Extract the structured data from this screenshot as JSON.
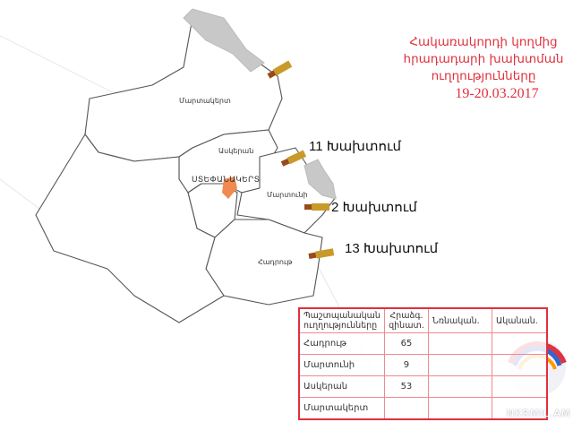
{
  "title": {
    "line1": "Հակառակորդի կողմից",
    "line2": "հրադադարի խախտման",
    "line3": "ուղղությունները",
    "date": "19-20.03.2017"
  },
  "regions": {
    "martakert": "Մարտակերտ",
    "askeran": "Ասկերան",
    "stepanakert": "ՍՏԵՓԱՆԱԿԵՐՏ",
    "martuni": "Մարտունի",
    "hadrut": "Հադրութ"
  },
  "violations": [
    {
      "label": "11 Խախտում"
    },
    {
      "label": "2 Խախտում"
    },
    {
      "label": "13 Խախտում"
    }
  ],
  "table": {
    "headers": [
      "Պաշտպանական ուղղությունները",
      "Հրաձգ. զինատ.",
      "Նռնական.",
      "Ականան."
    ],
    "rows": [
      [
        "Հադրութ",
        "65",
        "",
        ""
      ],
      [
        "Մարտունի",
        "9",
        "",
        ""
      ],
      [
        "Ասկերան",
        "53",
        "",
        ""
      ],
      [
        "Մարտակերտ",
        "",
        "",
        ""
      ]
    ]
  },
  "watermark": "NKRMIL.AM",
  "colors": {
    "title": "#e0303c",
    "occupied": "#c8c8c8",
    "capital": "#f08a50",
    "border": "#555555"
  }
}
